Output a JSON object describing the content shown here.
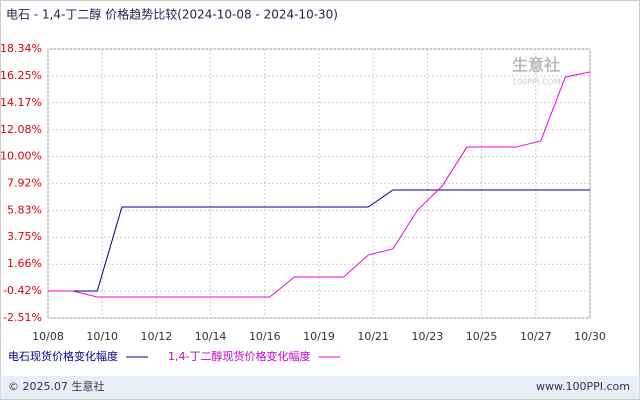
{
  "chart_data": {
    "type": "line",
    "title": "电石 - 1,4-丁二醇 价格趋势比较(2024-10-08 - 2024-10-30)",
    "x": [
      0,
      1,
      2,
      3,
      4,
      5,
      6,
      7,
      8,
      9,
      10,
      11,
      12,
      13,
      14,
      15,
      16,
      17,
      18,
      19,
      20,
      21,
      22
    ],
    "xlim": [
      0,
      22
    ],
    "xticks": [
      {
        "value": 0,
        "label": "10/08"
      },
      {
        "value": 2.2,
        "label": "10/10"
      },
      {
        "value": 4.4,
        "label": "10/12"
      },
      {
        "value": 6.6,
        "label": "10/14"
      },
      {
        "value": 8.8,
        "label": "10/16"
      },
      {
        "value": 11,
        "label": "10/19"
      },
      {
        "value": 13.2,
        "label": "10/21"
      },
      {
        "value": 15.4,
        "label": "10/23"
      },
      {
        "value": 17.6,
        "label": "10/25"
      },
      {
        "value": 19.8,
        "label": "10/27"
      },
      {
        "value": 22,
        "label": "10/30"
      }
    ],
    "ylim": [
      -2.51,
      18.34
    ],
    "yticks": [
      {
        "value": 18.34,
        "label": "18.34%"
      },
      {
        "value": 16.25,
        "label": "16.25%"
      },
      {
        "value": 14.17,
        "label": "14.17%"
      },
      {
        "value": 12.08,
        "label": "12.08%"
      },
      {
        "value": 10,
        "label": "10.00%"
      },
      {
        "value": 7.92,
        "label": "7.92%"
      },
      {
        "value": 5.83,
        "label": "5.83%"
      },
      {
        "value": 3.75,
        "label": "3.75%"
      },
      {
        "value": 1.66,
        "label": "1.66%"
      },
      {
        "value": -0.42,
        "label": "-0.42%"
      },
      {
        "value": -2.51,
        "label": "-2.51%"
      }
    ],
    "grid": true,
    "series": [
      {
        "name": "电石现货价格变化幅度",
        "color": "#00008b",
        "values": [
          -0.42,
          -0.42,
          -0.42,
          6.09,
          6.09,
          6.09,
          6.09,
          6.09,
          6.09,
          6.09,
          6.09,
          6.09,
          6.09,
          6.09,
          7.41,
          7.41,
          7.41,
          7.41,
          7.41,
          7.41,
          7.41,
          7.41,
          7.41
        ]
      },
      {
        "name": "1,4-丁二醇现货价格变化幅度",
        "color": "#ee00ee",
        "values": [
          -0.42,
          -0.42,
          -0.88,
          -0.88,
          -0.88,
          -0.88,
          -0.88,
          -0.88,
          -0.88,
          -0.88,
          0.67,
          0.67,
          0.67,
          2.37,
          2.84,
          5.86,
          7.72,
          10.74,
          10.74,
          10.74,
          11.21,
          16.17,
          16.56
        ]
      }
    ],
    "watermark": "生意社",
    "watermark_url": "100PPI.COM",
    "footer_left": "© 2025.07 生意社",
    "footer_right": "www.100PPI.com"
  }
}
